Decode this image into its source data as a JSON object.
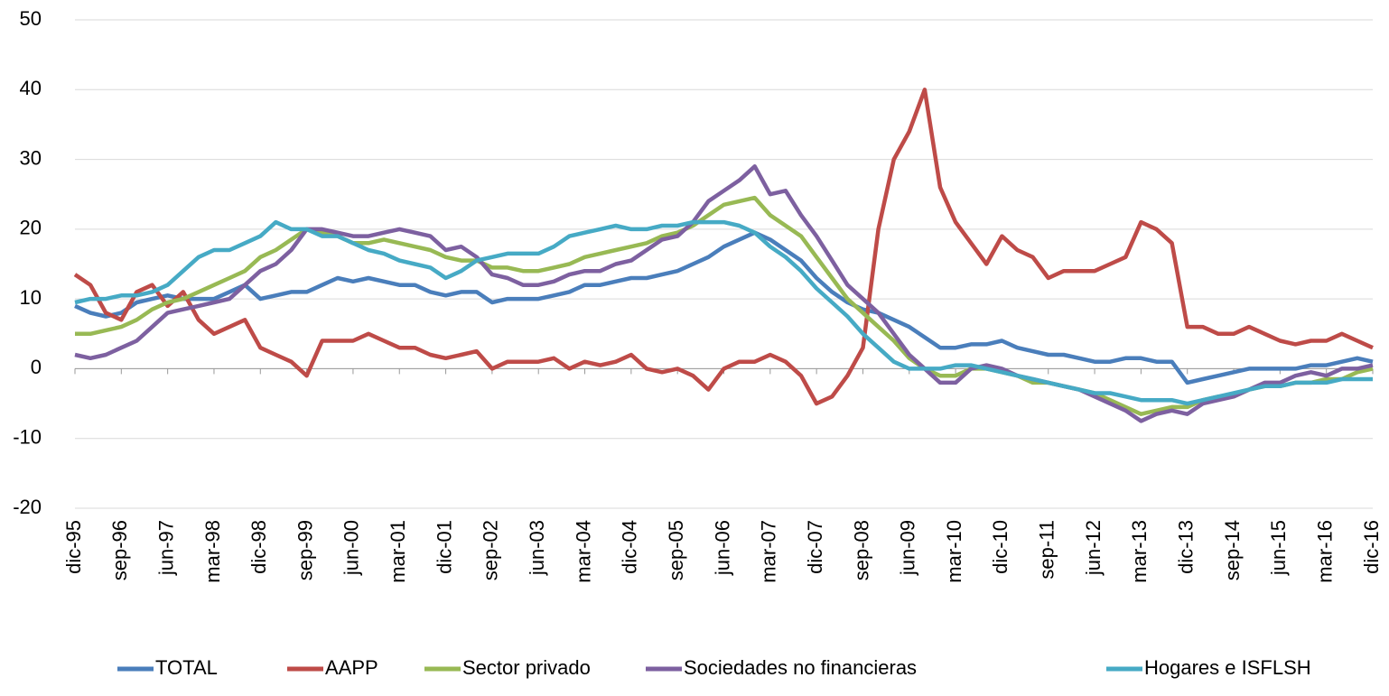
{
  "chart_data": {
    "type": "line",
    "categories": [
      "dic-95",
      null,
      null,
      "sep-96",
      null,
      null,
      "jun-97",
      null,
      null,
      "mar-98",
      null,
      null,
      "dic-98",
      null,
      null,
      "sep-99",
      null,
      null,
      "jun-00",
      null,
      null,
      "mar-01",
      null,
      null,
      "dic-01",
      null,
      null,
      "sep-02",
      null,
      null,
      "jun-03",
      null,
      null,
      "mar-04",
      null,
      null,
      "dic-04",
      null,
      null,
      "sep-05",
      null,
      null,
      "jun-06",
      null,
      null,
      "mar-07",
      null,
      null,
      "dic-07",
      null,
      null,
      "sep-08",
      null,
      null,
      "jun-09",
      null,
      null,
      "mar-10",
      null,
      null,
      "dic-10",
      null,
      null,
      "sep-11",
      null,
      null,
      "jun-12",
      null,
      null,
      "mar-13",
      null,
      null,
      "dic-13",
      null,
      null,
      "sep-14",
      null,
      null,
      "jun-15",
      null,
      null,
      "mar-16",
      null,
      null,
      "dic-16"
    ],
    "series": [
      {
        "name": "TOTAL",
        "color": "#4a7ebb",
        "values": [
          9,
          8,
          7.5,
          8,
          9.5,
          10,
          10.5,
          10,
          10,
          10,
          11,
          12,
          10,
          10.5,
          11,
          11,
          12,
          13,
          12.5,
          13,
          12.5,
          12,
          12,
          11,
          10.5,
          11,
          11,
          9.5,
          10,
          10,
          10,
          10.5,
          11,
          12,
          12,
          12.5,
          13,
          13,
          13.5,
          14,
          15,
          16,
          17.5,
          18.5,
          19.5,
          18.5,
          17,
          15.5,
          13,
          11,
          9.5,
          8.5,
          8,
          7,
          6,
          4.5,
          3,
          3,
          3.5,
          3.5,
          4,
          3,
          2.5,
          2,
          2,
          1.5,
          1,
          1,
          1.5,
          1.5,
          1,
          1,
          -2,
          -1.5,
          -1,
          -0.5,
          0,
          0,
          0,
          0,
          0.5,
          0.5,
          1,
          1.5,
          1
        ]
      },
      {
        "name": "AAPP",
        "color": "#be4b48",
        "values": [
          13.5,
          12,
          8,
          7,
          11,
          12,
          9,
          11,
          7,
          5,
          6,
          7,
          3,
          2,
          1,
          -1,
          4,
          4,
          4,
          5,
          4,
          3,
          3,
          2,
          1.5,
          2,
          2.5,
          0,
          1,
          1,
          1,
          1.5,
          0,
          1,
          0.5,
          1,
          2,
          0,
          -0.5,
          0,
          -1,
          -3,
          0,
          1,
          1,
          2,
          1,
          -1,
          -5,
          -4,
          -1,
          3,
          20,
          30,
          34,
          40,
          26,
          21,
          18,
          15,
          19,
          17,
          16,
          13,
          14,
          14,
          14,
          15,
          16,
          21,
          20,
          18,
          6,
          6,
          5,
          5,
          6,
          5,
          4,
          3.5,
          4,
          4,
          5,
          4,
          3
        ]
      },
      {
        "name": "Sector privado",
        "color": "#98b954",
        "values": [
          5,
          5,
          5.5,
          6,
          7,
          8.5,
          9.5,
          10,
          11,
          12,
          13,
          14,
          16,
          17,
          18.5,
          20,
          19.5,
          19,
          18,
          18,
          18.5,
          18,
          17.5,
          17,
          16,
          15.5,
          15.5,
          14.5,
          14.5,
          14,
          14,
          14.5,
          15,
          16,
          16.5,
          17,
          17.5,
          18,
          19,
          19.5,
          20.5,
          22,
          23.5,
          24,
          24.5,
          22,
          20.5,
          19,
          16,
          13,
          10,
          8,
          6,
          4,
          1.5,
          0,
          -1,
          -1,
          0,
          0,
          -0.5,
          -1,
          -2,
          -2,
          -2.5,
          -3,
          -3.5,
          -4.5,
          -5.5,
          -6.5,
          -6,
          -5.5,
          -5.5,
          -4.5,
          -4,
          -4,
          -3,
          -2.5,
          -2.5,
          -2,
          -2,
          -1.5,
          -1.5,
          -0.5,
          0
        ]
      },
      {
        "name": "Sociedades no financieras",
        "color": "#7d60a0",
        "values": [
          2,
          1.5,
          2,
          3,
          4,
          6,
          8,
          8.5,
          9,
          9.5,
          10,
          12,
          14,
          15,
          17,
          20,
          20,
          19.5,
          19,
          19,
          19.5,
          20,
          19.5,
          19,
          17,
          17.5,
          16,
          13.5,
          13,
          12,
          12,
          12.5,
          13.5,
          14,
          14,
          15,
          15.5,
          17,
          18.5,
          19,
          21,
          24,
          25.5,
          27,
          29,
          25,
          25.5,
          22,
          19,
          15.5,
          12,
          10,
          8,
          5,
          2,
          0,
          -2,
          -2,
          0,
          0.5,
          0,
          -1,
          -1.5,
          -2,
          -2.5,
          -3,
          -4,
          -5,
          -6,
          -7.5,
          -6.5,
          -6,
          -6.5,
          -5,
          -4.5,
          -4,
          -3,
          -2,
          -2,
          -1,
          -0.5,
          -1,
          0,
          0,
          0.5
        ]
      },
      {
        "name": "Hogares e ISFLSH",
        "color": "#46aac5",
        "values": [
          9.5,
          10,
          10,
          10.5,
          10.5,
          11,
          12,
          14,
          16,
          17,
          17,
          18,
          19,
          21,
          20,
          20,
          19,
          19,
          18,
          17,
          16.5,
          15.5,
          15,
          14.5,
          13,
          14,
          15.5,
          16,
          16.5,
          16.5,
          16.5,
          17.5,
          19,
          19.5,
          20,
          20.5,
          20,
          20,
          20.5,
          20.5,
          21,
          21,
          21,
          20.5,
          19.5,
          17.5,
          16,
          14,
          11.5,
          9.5,
          7.5,
          5,
          3,
          1,
          0,
          0,
          0,
          0.5,
          0.5,
          0,
          -0.5,
          -1,
          -1.5,
          -2,
          -2.5,
          -3,
          -3.5,
          -3.5,
          -4,
          -4.5,
          -4.5,
          -4.5,
          -5,
          -4.5,
          -4,
          -3.5,
          -3,
          -2.5,
          -2.5,
          -2,
          -2,
          -2,
          -1.5,
          -1.5,
          -1.5
        ]
      }
    ],
    "ylim": [
      -20,
      50
    ],
    "yticks": [
      -20,
      -10,
      0,
      10,
      20,
      30,
      40,
      50
    ],
    "grid": true,
    "legend": "bottom"
  }
}
